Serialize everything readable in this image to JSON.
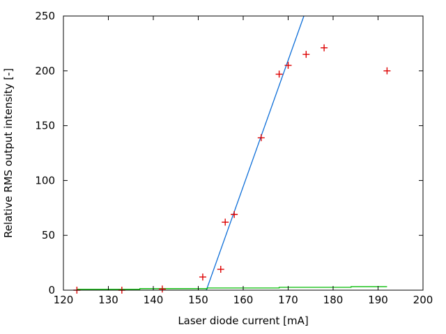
{
  "figure": {
    "background": "#ffffff",
    "border_color": "#000000",
    "text_color": "#000000"
  },
  "chart_data": {
    "type": "scatter",
    "title": "",
    "xlabel": "Laser diode current [mA]",
    "ylabel": "Relative RMS output intensity [-]",
    "xlim": [
      120,
      200
    ],
    "ylim": [
      0,
      250
    ],
    "xticks": [
      120,
      130,
      140,
      150,
      160,
      170,
      180,
      190,
      200
    ],
    "yticks": [
      0,
      50,
      100,
      150,
      200,
      250
    ],
    "grid": false,
    "legend_position": "none",
    "ticks_mirrored_inward": true,
    "series": [
      {
        "name": "measured-rms-points",
        "type": "scatter",
        "marker": "plus",
        "color": "#dd0000",
        "points": [
          [
            123,
            0
          ],
          [
            133,
            0
          ],
          [
            142,
            1
          ],
          [
            151,
            12
          ],
          [
            155,
            19
          ],
          [
            156,
            62
          ],
          [
            158,
            69
          ],
          [
            164,
            139
          ],
          [
            168,
            197
          ],
          [
            170,
            205
          ],
          [
            174,
            215
          ],
          [
            178,
            221
          ],
          [
            192,
            200
          ]
        ]
      },
      {
        "name": "threshold-fit-line",
        "type": "line",
        "color": "#0d6ed8",
        "points": [
          [
            151.8,
            0
          ],
          [
            173.5,
            250
          ]
        ]
      },
      {
        "name": "below-threshold-line",
        "type": "line",
        "color": "#00bb00",
        "points": [
          [
            123,
            0.8
          ],
          [
            137,
            0.8
          ],
          [
            137,
            1.4
          ],
          [
            152,
            1.4
          ],
          [
            152,
            2.0
          ],
          [
            168,
            2.0
          ],
          [
            168,
            2.6
          ],
          [
            184,
            2.6
          ],
          [
            184,
            3.2
          ],
          [
            192,
            3.2
          ]
        ]
      }
    ]
  }
}
